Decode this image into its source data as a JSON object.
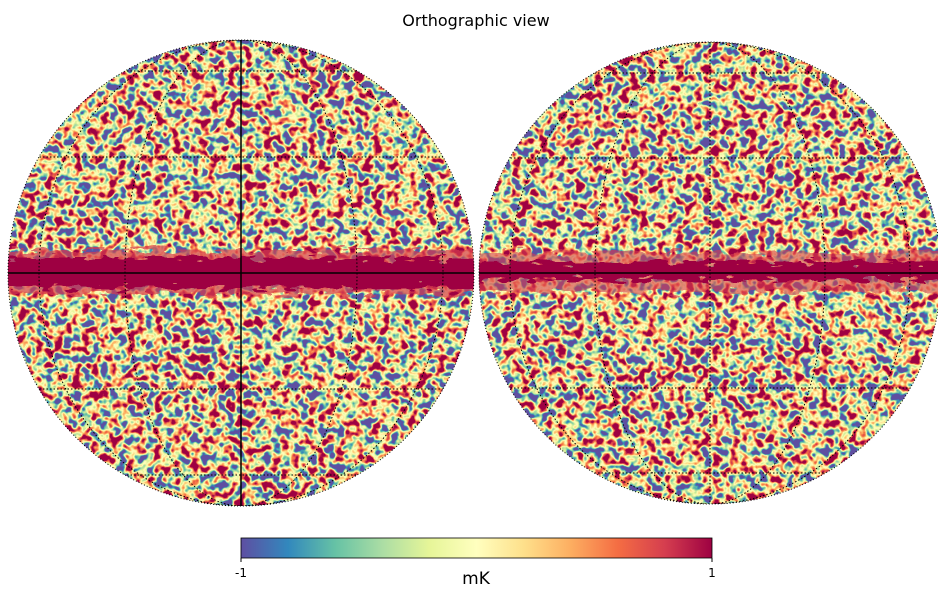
{
  "chart_data": {
    "type": "orthographic-map",
    "title": "Orthographic view",
    "colorbar": {
      "label": "mK",
      "lim": [
        -1,
        1
      ],
      "ticks": [
        -1,
        1
      ],
      "colormap": "Spectral_r"
    }
  }
}
